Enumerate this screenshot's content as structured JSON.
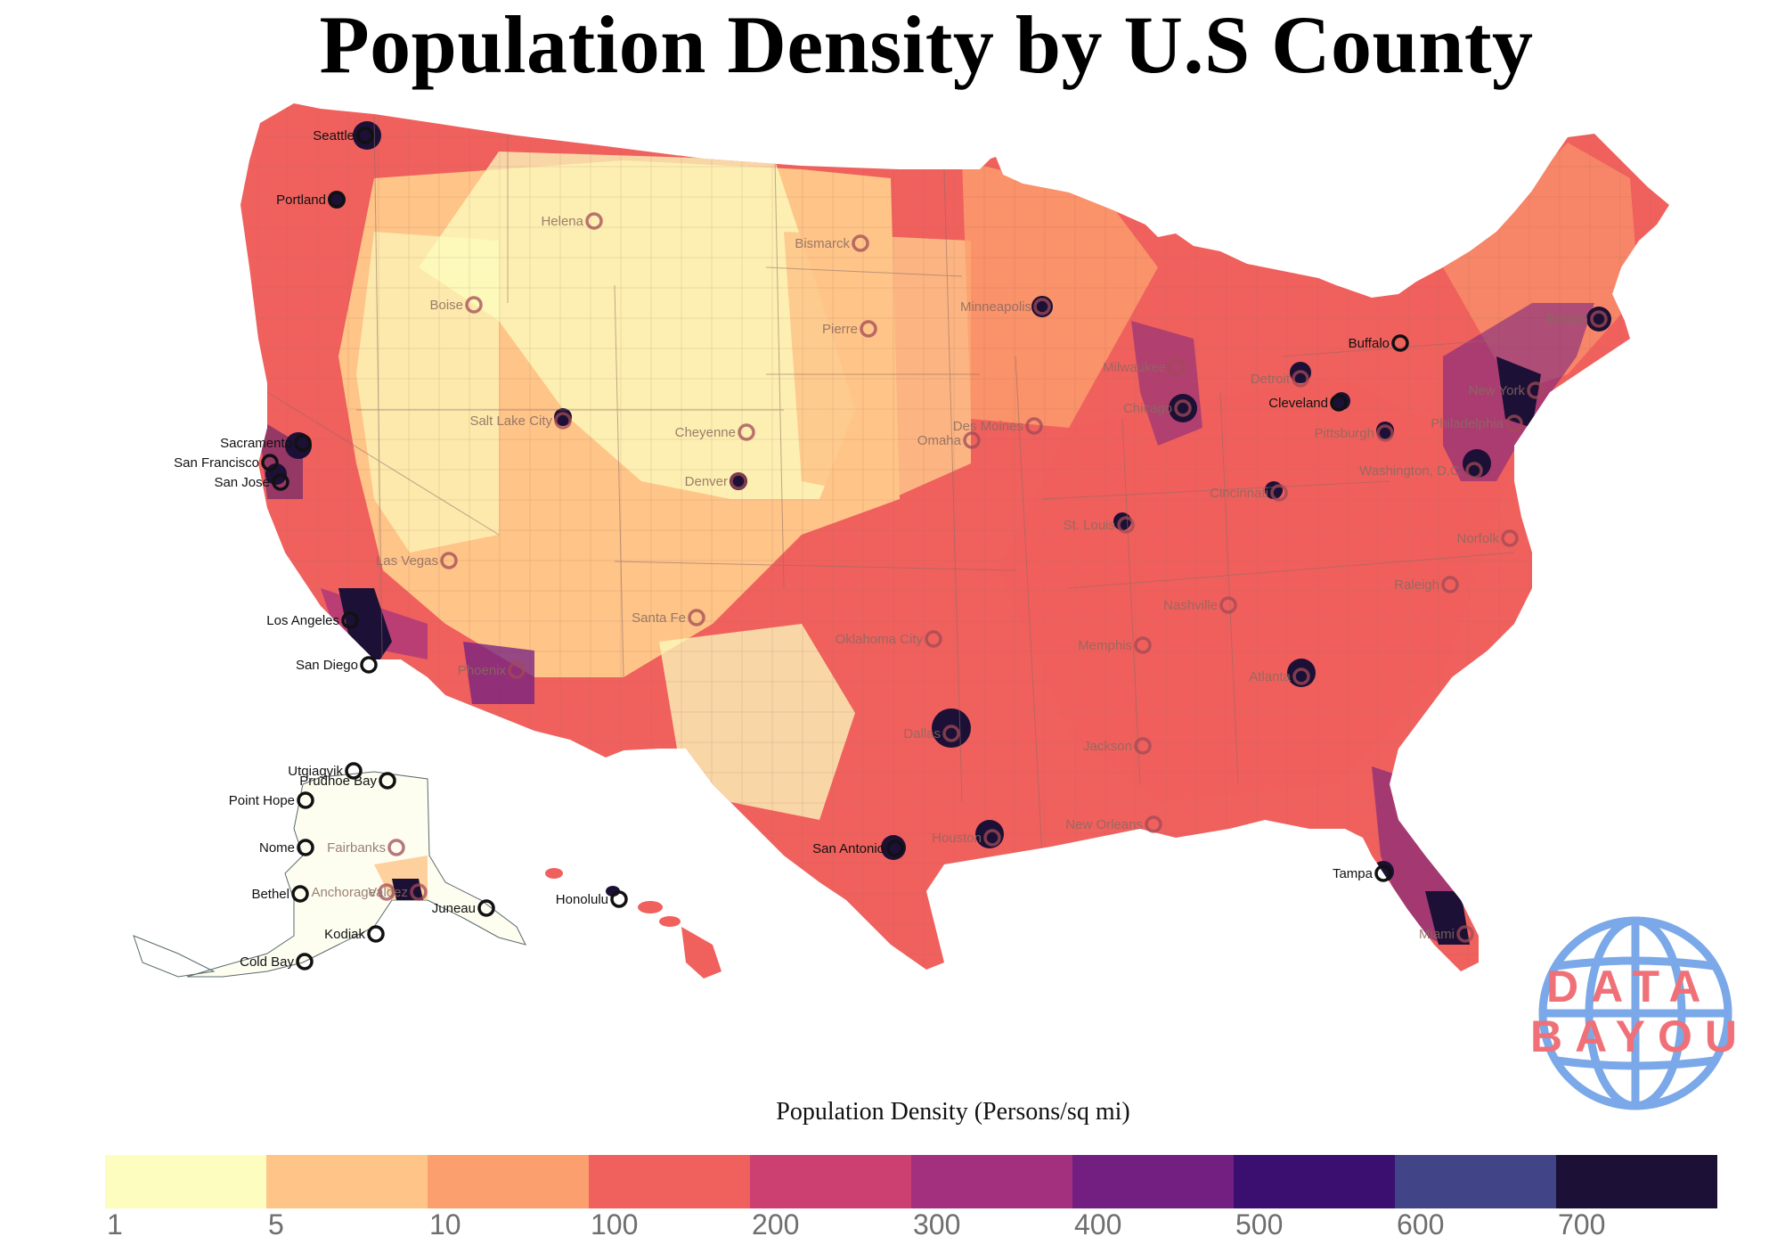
{
  "title": "Population Density by U.S County",
  "legend": {
    "title": "Population Density (Persons/sq mi)",
    "colors": [
      "#fcfdbf",
      "#fec488",
      "#fc9f6e",
      "#f0605d",
      "#cc4071",
      "#a3307e",
      "#721f81",
      "#3b0f70",
      "#414487",
      "#1c1036"
    ],
    "ticks": [
      "1",
      "5",
      "10",
      "100",
      "200",
      "300",
      "400",
      "500",
      "600",
      "700"
    ]
  },
  "cities": [
    {
      "name": "Seattle",
      "style": "dark"
    },
    {
      "name": "Portland",
      "style": "dark"
    },
    {
      "name": "Helena",
      "style": "faded"
    },
    {
      "name": "Bismarck",
      "style": "faded"
    },
    {
      "name": "Boise",
      "style": "faded"
    },
    {
      "name": "Minneapolis",
      "style": "faded"
    },
    {
      "name": "Pierre",
      "style": "faded"
    },
    {
      "name": "Buffalo",
      "style": "dark"
    },
    {
      "name": "Boston",
      "style": "faded"
    },
    {
      "name": "Milwaukee",
      "style": "faded"
    },
    {
      "name": "Detroit",
      "style": "faded"
    },
    {
      "name": "Cleveland",
      "style": "dark"
    },
    {
      "name": "Chicago",
      "style": "faded"
    },
    {
      "name": "New York",
      "style": "faded"
    },
    {
      "name": "Sacramento",
      "style": "dark"
    },
    {
      "name": "San Francisco",
      "style": "dark"
    },
    {
      "name": "San Jose",
      "style": "dark"
    },
    {
      "name": "Salt Lake City",
      "style": "faded"
    },
    {
      "name": "Cheyenne",
      "style": "faded"
    },
    {
      "name": "Omaha",
      "style": "faded"
    },
    {
      "name": "Des Moines",
      "style": "faded"
    },
    {
      "name": "Pittsburgh",
      "style": "faded"
    },
    {
      "name": "Philadelphia",
      "style": "faded"
    },
    {
      "name": "Washington, D.C.",
      "style": "faded"
    },
    {
      "name": "Denver",
      "style": "faded"
    },
    {
      "name": "Cincinnati",
      "style": "faded"
    },
    {
      "name": "St. Louis",
      "style": "faded"
    },
    {
      "name": "Norfolk",
      "style": "faded"
    },
    {
      "name": "Las Vegas",
      "style": "faded"
    },
    {
      "name": "Nashville",
      "style": "faded"
    },
    {
      "name": "Raleigh",
      "style": "faded"
    },
    {
      "name": "Los Angeles",
      "style": "dark"
    },
    {
      "name": "Santa Fe",
      "style": "faded"
    },
    {
      "name": "Oklahoma City",
      "style": "faded"
    },
    {
      "name": "Memphis",
      "style": "faded"
    },
    {
      "name": "San Diego",
      "style": "dark"
    },
    {
      "name": "Phoenix",
      "style": "faded"
    },
    {
      "name": "Atlanta",
      "style": "faded"
    },
    {
      "name": "Dallas",
      "style": "faded"
    },
    {
      "name": "Jackson",
      "style": "faded"
    },
    {
      "name": "Utqiagvik",
      "style": "dark"
    },
    {
      "name": "Prudhoe Bay",
      "style": "dark"
    },
    {
      "name": "Point Hope",
      "style": "dark"
    },
    {
      "name": "Nome",
      "style": "dark"
    },
    {
      "name": "Fairbanks",
      "style": "faded"
    },
    {
      "name": "New Orleans",
      "style": "faded"
    },
    {
      "name": "San Antonio",
      "style": "dark"
    },
    {
      "name": "Houston",
      "style": "faded"
    },
    {
      "name": "Tampa",
      "style": "dark"
    },
    {
      "name": "Bethel",
      "style": "dark"
    },
    {
      "name": "Anchorage",
      "style": "faded"
    },
    {
      "name": "Valdez",
      "style": "faded"
    },
    {
      "name": "Juneau",
      "style": "dark"
    },
    {
      "name": "Honolulu",
      "style": "dark"
    },
    {
      "name": "Kodiak",
      "style": "dark"
    },
    {
      "name": "Miami",
      "style": "faded"
    },
    {
      "name": "Cold Bay",
      "style": "dark"
    }
  ],
  "logo": {
    "line1": "DATA",
    "line2": "BAYOU",
    "color": "#f07078",
    "globe_color": "#7aa8e8"
  }
}
